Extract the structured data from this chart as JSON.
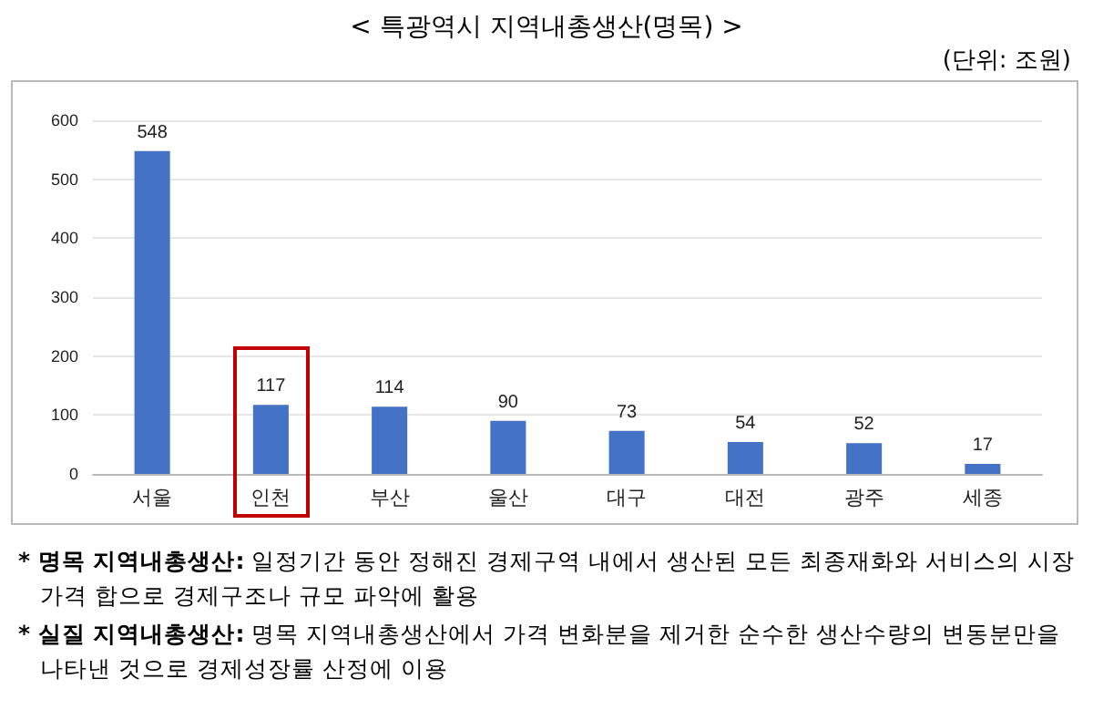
{
  "chart_data": {
    "type": "bar",
    "title": "< 특광역시 지역내총생산(명목) >",
    "subtitle": "(단위: 조원)",
    "categories": [
      "서울",
      "인천",
      "부산",
      "울산",
      "대구",
      "대전",
      "광주",
      "세종"
    ],
    "values": [
      548,
      117,
      114,
      90,
      73,
      54,
      52,
      17
    ],
    "color": "#4472c4",
    "ylim": [
      0,
      600
    ],
    "yticks": [
      0,
      100,
      200,
      300,
      400,
      500,
      600
    ],
    "grid": "y",
    "data_labels": true,
    "annotations": [
      "* 명목 지역내총생산: 일정기간 동안 정해진 경제구역 내에서 생산된 모든 최종재화와 서비스의 시장가격 합으로 경제구조나 규모 파악에 활용",
      "* 실질 지역내총생산: 명목 지역내총생산에서 가격 변화분을 제거한 순수한 생산수량의 변동분만을 나타낸 것으로 경제성장률 산정에 이용"
    ]
  }
}
